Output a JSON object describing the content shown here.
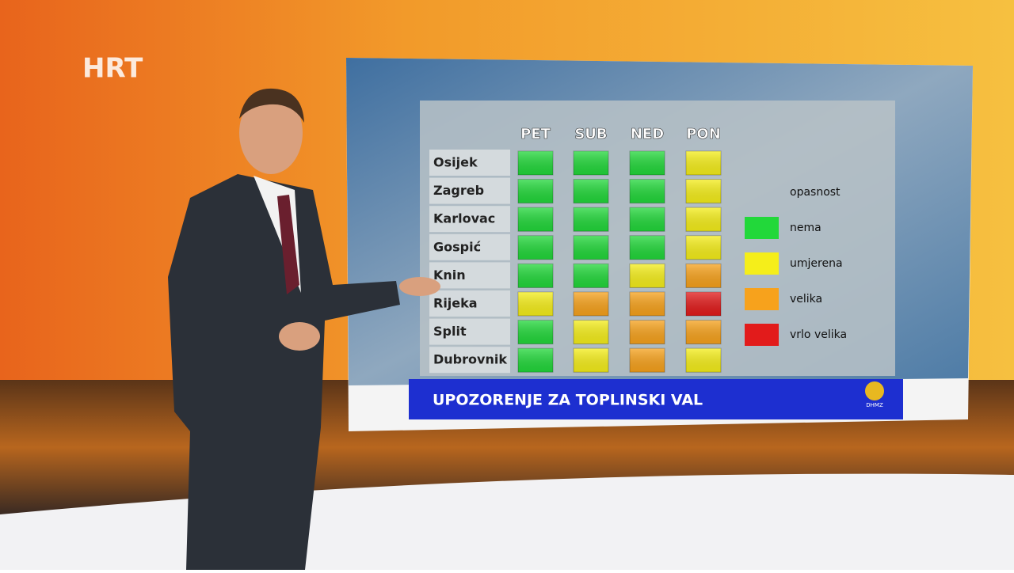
{
  "logo": "HRT",
  "warning_table": {
    "columns": [
      "PET",
      "SUB",
      "NED",
      "PON"
    ],
    "rows": [
      {
        "city": "Osijek",
        "cells": [
          "#22d83a",
          "#22d83a",
          "#22d83a",
          "#f5ee1a"
        ]
      },
      {
        "city": "Zagreb",
        "cells": [
          "#22d83a",
          "#22d83a",
          "#22d83a",
          "#f5ee1a"
        ]
      },
      {
        "city": "Karlovac",
        "cells": [
          "#22d83a",
          "#22d83a",
          "#22d83a",
          "#f5ee1a"
        ]
      },
      {
        "city": "Gospić",
        "cells": [
          "#22d83a",
          "#22d83a",
          "#22d83a",
          "#f5ee1a"
        ]
      },
      {
        "city": "Knin",
        "cells": [
          "#22d83a",
          "#22d83a",
          "#f5ee1a",
          "#f7a21c"
        ]
      },
      {
        "city": "Rijeka",
        "cells": [
          "#f5ee1a",
          "#f7a21c",
          "#f7a21c",
          "#e21b1b"
        ]
      },
      {
        "city": "Split",
        "cells": [
          "#22d83a",
          "#f5ee1a",
          "#f7a21c",
          "#f7a21c"
        ]
      },
      {
        "city": "Dubrovnik",
        "cells": [
          "#22d83a",
          "#f5ee1a",
          "#f7a21c",
          "#f5ee1a"
        ]
      }
    ],
    "legend": {
      "title": "opasnost",
      "items": [
        {
          "label": "nema",
          "color": "#22d83a"
        },
        {
          "label": "umjerena",
          "color": "#f5ee1a"
        },
        {
          "label": "velika",
          "color": "#f7a21c"
        },
        {
          "label": "vrlo velika",
          "color": "#e21b1b"
        }
      ]
    },
    "banner": "UPOZORENJE ZA TOPLINSKI VAL",
    "banner_logo": "DHMZ"
  }
}
